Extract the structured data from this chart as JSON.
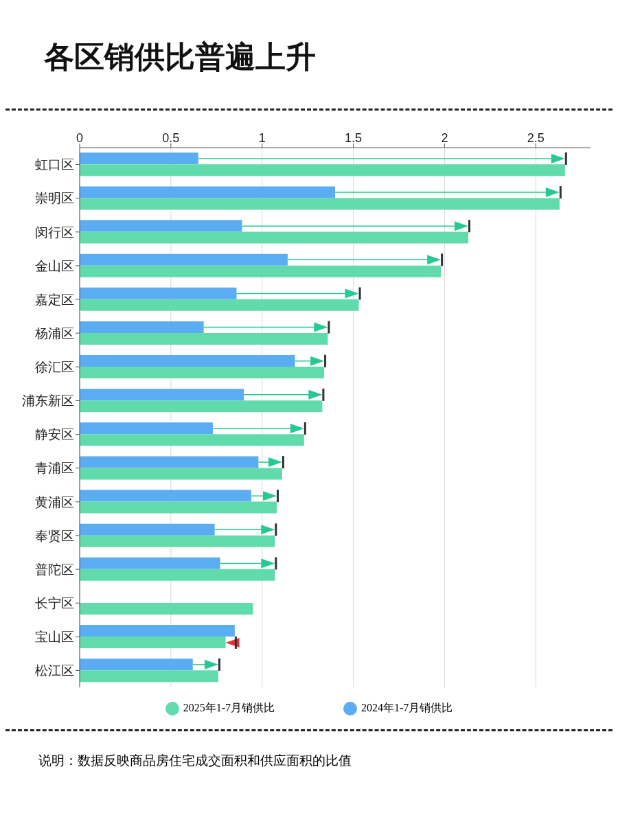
{
  "chart_data": {
    "type": "bar",
    "orientation": "horizontal",
    "title": "各区销供比普遍上升",
    "categories": [
      "虹口区",
      "崇明区",
      "闵行区",
      "金山区",
      "嘉定区",
      "杨浦区",
      "徐汇区",
      "浦东新区",
      "静安区",
      "青浦区",
      "黄浦区",
      "奉贤区",
      "普陀区",
      "长宁区",
      "宝山区",
      "松江区"
    ],
    "series": [
      {
        "name": "2025年1-7月销供比",
        "color": "#62dbac",
        "values": [
          2.66,
          2.63,
          2.13,
          1.98,
          1.53,
          1.36,
          1.34,
          1.33,
          1.23,
          1.11,
          1.08,
          1.07,
          1.07,
          0.95,
          0.8,
          0.76
        ]
      },
      {
        "name": "2024年1-7月销供比",
        "color": "#5aacf3",
        "values": [
          0.65,
          1.4,
          0.89,
          1.14,
          0.86,
          0.68,
          1.18,
          0.9,
          0.73,
          0.98,
          0.94,
          0.74,
          0.77,
          null,
          0.85,
          0.62
        ]
      }
    ],
    "xlim": [
      0,
      2.8
    ],
    "xticks": [
      0,
      0.5,
      1,
      1.5,
      2,
      2.5
    ],
    "grid": "x",
    "legend": "bottom",
    "annotations": [
      "说明：数据反映商品房住宅成交面积和供应面积的比值"
    ]
  }
}
